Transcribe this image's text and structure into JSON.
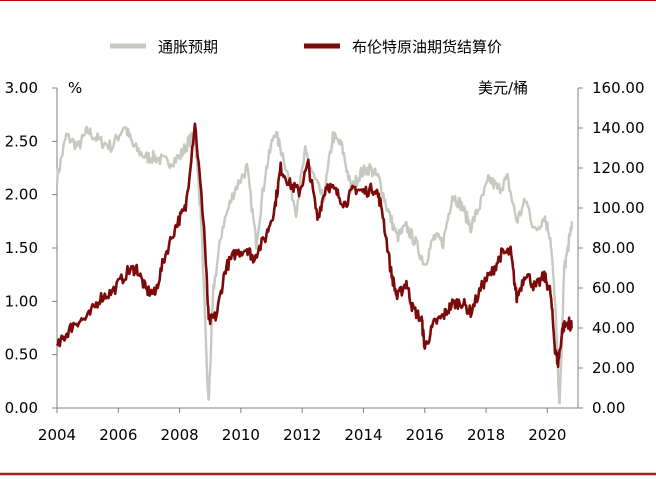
{
  "chart_data": {
    "type": "line",
    "title": "",
    "left_axis": {
      "unit": "%",
      "ylim": [
        0.0,
        3.0
      ],
      "ticks": [
        "3.00",
        "2.50",
        "2.00",
        "1.50",
        "1.00",
        "0.50",
        "0.00"
      ]
    },
    "right_axis": {
      "unit": "美元/桶",
      "ylim": [
        0.0,
        160.0
      ],
      "ticks": [
        "160.00",
        "140.00",
        "120.00",
        "100.00",
        "80.00",
        "60.00",
        "40.00",
        "20.00",
        "0.00"
      ]
    },
    "x_axis": {
      "xlim": [
        2004.0,
        2021.0
      ],
      "ticks": [
        "2004",
        "2006",
        "2008",
        "2010",
        "2012",
        "2014",
        "2016",
        "2018",
        "2020"
      ]
    },
    "grid": false,
    "legend_position": "top",
    "series": [
      {
        "name": "通胀预期",
        "axis": "left",
        "color": "#c8c8c0",
        "x": [
          2004.0,
          2004.3,
          2004.7,
          2005.0,
          2005.4,
          2005.8,
          2006.2,
          2006.5,
          2006.9,
          2007.2,
          2007.6,
          2008.0,
          2008.3,
          2008.5,
          2008.7,
          2008.9,
          2008.95,
          2009.1,
          2009.4,
          2009.8,
          2010.2,
          2010.5,
          2010.8,
          2011.1,
          2011.4,
          2011.8,
          2012.1,
          2012.4,
          2012.7,
          2013.0,
          2013.3,
          2013.6,
          2013.9,
          2014.2,
          2014.5,
          2014.8,
          2015.1,
          2015.4,
          2015.7,
          2016.0,
          2016.3,
          2016.6,
          2016.9,
          2017.2,
          2017.5,
          2017.8,
          2018.1,
          2018.4,
          2018.7,
          2019.0,
          2019.3,
          2019.6,
          2019.9,
          2020.1,
          2020.25,
          2020.4,
          2020.55,
          2020.7,
          2020.8
        ],
        "values": [
          2.15,
          2.55,
          2.45,
          2.6,
          2.5,
          2.45,
          2.65,
          2.45,
          2.35,
          2.35,
          2.3,
          2.35,
          2.5,
          2.55,
          1.8,
          0.3,
          0.05,
          1.1,
          1.7,
          2.05,
          2.25,
          1.55,
          2.2,
          2.6,
          2.35,
          1.85,
          2.4,
          2.15,
          1.95,
          2.55,
          2.45,
          2.05,
          2.2,
          2.25,
          2.15,
          1.85,
          1.6,
          1.7,
          1.55,
          1.35,
          1.6,
          1.55,
          2.0,
          1.9,
          1.7,
          1.9,
          2.15,
          2.05,
          2.15,
          1.75,
          1.95,
          1.65,
          1.8,
          1.6,
          1.0,
          0.0,
          1.3,
          1.55,
          1.75
        ]
      },
      {
        "name": "布伦特原油期货结算价",
        "axis": "right",
        "color": "#7b0a0a",
        "x": [
          2004.0,
          2004.3,
          2004.6,
          2005.0,
          2005.4,
          2005.8,
          2006.3,
          2006.6,
          2006.9,
          2007.2,
          2007.5,
          2007.9,
          2008.2,
          2008.5,
          2008.8,
          2008.95,
          2009.2,
          2009.5,
          2009.8,
          2010.2,
          2010.4,
          2010.8,
          2011.1,
          2011.3,
          2011.6,
          2011.9,
          2012.2,
          2012.5,
          2012.8,
          2013.1,
          2013.4,
          2013.7,
          2014.0,
          2014.4,
          2014.6,
          2014.9,
          2015.1,
          2015.4,
          2015.6,
          2015.9,
          2016.0,
          2016.3,
          2016.6,
          2016.9,
          2017.2,
          2017.5,
          2017.9,
          2018.2,
          2018.5,
          2018.8,
          2019.0,
          2019.3,
          2019.6,
          2019.9,
          2020.1,
          2020.25,
          2020.35,
          2020.5,
          2020.7,
          2020.8
        ],
        "values": [
          30,
          37,
          43,
          45,
          55,
          58,
          68,
          70,
          59,
          57,
          75,
          92,
          100,
          143,
          90,
          43,
          46,
          70,
          77,
          80,
          75,
          85,
          100,
          120,
          112,
          108,
          122,
          95,
          112,
          108,
          102,
          110,
          108,
          110,
          100,
          68,
          55,
          63,
          50,
          44,
          30,
          42,
          46,
          52,
          53,
          48,
          62,
          68,
          77,
          78,
          55,
          68,
          60,
          66,
          58,
          30,
          22,
          40,
          43,
          40
        ]
      }
    ]
  }
}
